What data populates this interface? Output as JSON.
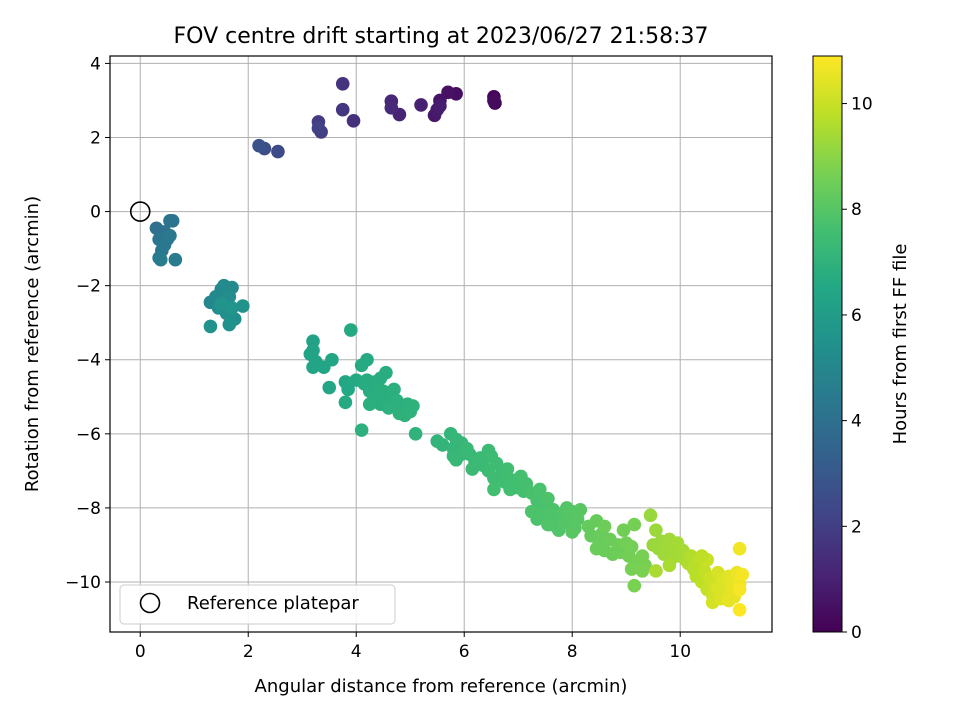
{
  "chart_data": {
    "type": "scatter",
    "title": "FOV centre drift starting at 2023/06/27 21:58:37",
    "xlabel": "Angular distance from reference (arcmin)",
    "ylabel": "Rotation from reference (arcmin)",
    "xlim": [
      -0.56,
      11.7
    ],
    "ylim": [
      -11.35,
      4.2
    ],
    "xticks": [
      0,
      2,
      4,
      6,
      8,
      10
    ],
    "yticks": [
      -10,
      -8,
      -6,
      -4,
      -2,
      0,
      2,
      4
    ],
    "x_tick_labels": [
      "0",
      "2",
      "4",
      "6",
      "8",
      "10"
    ],
    "y_tick_labels": [
      "−10",
      "−8",
      "−6",
      "−4",
      "−2",
      "0",
      "2",
      "4"
    ],
    "grid": true,
    "legend": {
      "placement": "lower-left",
      "label": "Reference platepar"
    },
    "reference_point": {
      "x": 0,
      "y": 0
    },
    "colorbar": {
      "label": "Hours from first FF file",
      "range": [
        0,
        10.9
      ],
      "ticks": [
        0,
        2,
        4,
        6,
        8,
        10
      ],
      "tick_labels": [
        "0",
        "2",
        "4",
        "6",
        "8",
        "10"
      ],
      "colormap": "viridis"
    },
    "points": [
      {
        "x": 6.55,
        "y": 3.1,
        "c": 0.1
      },
      {
        "x": 6.57,
        "y": 2.93,
        "c": 0.2
      },
      {
        "x": 6.55,
        "y": 3.0,
        "c": 0.3
      },
      {
        "x": 5.85,
        "y": 3.18,
        "c": 0.4
      },
      {
        "x": 5.7,
        "y": 3.22,
        "c": 0.5
      },
      {
        "x": 5.55,
        "y": 3.0,
        "c": 0.6
      },
      {
        "x": 5.45,
        "y": 2.6,
        "c": 0.7
      },
      {
        "x": 5.5,
        "y": 2.75,
        "c": 0.8
      },
      {
        "x": 5.55,
        "y": 2.85,
        "c": 0.9
      },
      {
        "x": 5.2,
        "y": 2.88,
        "c": 1.0
      },
      {
        "x": 4.8,
        "y": 2.62,
        "c": 1.1
      },
      {
        "x": 4.65,
        "y": 2.98,
        "c": 1.2
      },
      {
        "x": 4.65,
        "y": 2.8,
        "c": 1.3
      },
      {
        "x": 3.95,
        "y": 2.45,
        "c": 1.5
      },
      {
        "x": 3.75,
        "y": 3.45,
        "c": 1.6
      },
      {
        "x": 3.75,
        "y": 2.75,
        "c": 1.7
      },
      {
        "x": 3.3,
        "y": 2.42,
        "c": 1.9
      },
      {
        "x": 3.35,
        "y": 2.15,
        "c": 2.0
      },
      {
        "x": 3.3,
        "y": 2.25,
        "c": 2.1
      },
      {
        "x": 2.55,
        "y": 1.62,
        "c": 2.5
      },
      {
        "x": 2.3,
        "y": 1.7,
        "c": 2.6
      },
      {
        "x": 2.2,
        "y": 1.78,
        "c": 2.7
      },
      {
        "x": 0.3,
        "y": -0.45,
        "c": 4.0
      },
      {
        "x": 0.45,
        "y": -0.55,
        "c": 4.05
      },
      {
        "x": 0.55,
        "y": -0.25,
        "c": 4.1
      },
      {
        "x": 0.6,
        "y": -0.25,
        "c": 4.15
      },
      {
        "x": 0.5,
        "y": -0.75,
        "c": 4.2
      },
      {
        "x": 0.35,
        "y": -0.75,
        "c": 4.25
      },
      {
        "x": 0.4,
        "y": -1.05,
        "c": 4.3
      },
      {
        "x": 0.45,
        "y": -0.9,
        "c": 4.35
      },
      {
        "x": 0.55,
        "y": -0.65,
        "c": 4.4
      },
      {
        "x": 0.35,
        "y": -1.25,
        "c": 4.45
      },
      {
        "x": 0.38,
        "y": -1.3,
        "c": 4.5
      },
      {
        "x": 0.65,
        "y": -1.3,
        "c": 4.55
      },
      {
        "x": 1.3,
        "y": -2.45,
        "c": 5.0
      },
      {
        "x": 1.4,
        "y": -2.3,
        "c": 5.05
      },
      {
        "x": 1.5,
        "y": -2.1,
        "c": 5.1
      },
      {
        "x": 1.55,
        "y": -2.0,
        "c": 5.15
      },
      {
        "x": 1.7,
        "y": -2.05,
        "c": 5.2
      },
      {
        "x": 1.65,
        "y": -2.3,
        "c": 5.25
      },
      {
        "x": 1.45,
        "y": -2.6,
        "c": 5.3
      },
      {
        "x": 1.6,
        "y": -2.75,
        "c": 5.35
      },
      {
        "x": 1.75,
        "y": -2.9,
        "c": 5.4
      },
      {
        "x": 1.65,
        "y": -3.05,
        "c": 5.45
      },
      {
        "x": 1.3,
        "y": -3.1,
        "c": 5.5
      },
      {
        "x": 1.9,
        "y": -2.55,
        "c": 5.55
      },
      {
        "x": 1.5,
        "y": -2.5,
        "c": 5.6
      },
      {
        "x": 1.7,
        "y": -2.6,
        "c": 5.62
      },
      {
        "x": 3.2,
        "y": -3.5,
        "c": 6.2
      },
      {
        "x": 3.2,
        "y": -3.75,
        "c": 6.25
      },
      {
        "x": 3.25,
        "y": -4.05,
        "c": 6.3
      },
      {
        "x": 3.15,
        "y": -3.85,
        "c": 6.3
      },
      {
        "x": 3.2,
        "y": -4.2,
        "c": 6.35
      },
      {
        "x": 3.4,
        "y": -4.2,
        "c": 6.4
      },
      {
        "x": 3.55,
        "y": -4.0,
        "c": 6.4
      },
      {
        "x": 3.5,
        "y": -4.75,
        "c": 6.45
      },
      {
        "x": 3.8,
        "y": -4.6,
        "c": 6.5
      },
      {
        "x": 3.85,
        "y": -4.8,
        "c": 6.55
      },
      {
        "x": 3.8,
        "y": -5.15,
        "c": 6.6
      },
      {
        "x": 3.9,
        "y": -3.2,
        "c": 6.6
      },
      {
        "x": 4.0,
        "y": -4.55,
        "c": 6.6
      },
      {
        "x": 4.1,
        "y": -4.15,
        "c": 6.65
      },
      {
        "x": 4.2,
        "y": -4.0,
        "c": 6.65
      },
      {
        "x": 4.2,
        "y": -4.55,
        "c": 6.7
      },
      {
        "x": 4.15,
        "y": -4.65,
        "c": 6.7
      },
      {
        "x": 4.25,
        "y": -4.85,
        "c": 6.72
      },
      {
        "x": 4.35,
        "y": -4.6,
        "c": 6.74
      },
      {
        "x": 4.45,
        "y": -4.5,
        "c": 6.76
      },
      {
        "x": 4.55,
        "y": -4.35,
        "c": 6.78
      },
      {
        "x": 4.5,
        "y": -4.85,
        "c": 6.8
      },
      {
        "x": 4.35,
        "y": -5.0,
        "c": 6.8
      },
      {
        "x": 4.45,
        "y": -5.2,
        "c": 6.82
      },
      {
        "x": 4.6,
        "y": -5.05,
        "c": 6.84
      },
      {
        "x": 4.7,
        "y": -4.8,
        "c": 6.86
      },
      {
        "x": 4.75,
        "y": -5.1,
        "c": 6.88
      },
      {
        "x": 4.85,
        "y": -5.3,
        "c": 6.9
      },
      {
        "x": 4.95,
        "y": -5.2,
        "c": 6.92
      },
      {
        "x": 4.8,
        "y": -5.45,
        "c": 6.94
      },
      {
        "x": 5.05,
        "y": -5.25,
        "c": 6.96
      },
      {
        "x": 4.9,
        "y": -5.5,
        "c": 6.98
      },
      {
        "x": 5.0,
        "y": -5.4,
        "c": 7.0
      },
      {
        "x": 4.3,
        "y": -5.15,
        "c": 6.8
      },
      {
        "x": 4.1,
        "y": -5.9,
        "c": 6.9
      },
      {
        "x": 5.1,
        "y": -6.0,
        "c": 7.0
      },
      {
        "x": 4.25,
        "y": -5.2,
        "c": 6.85
      },
      {
        "x": 4.6,
        "y": -5.3,
        "c": 6.9
      },
      {
        "x": 4.4,
        "y": -4.75,
        "c": 6.8
      },
      {
        "x": 5.5,
        "y": -6.2,
        "c": 7.1
      },
      {
        "x": 5.6,
        "y": -6.3,
        "c": 7.12
      },
      {
        "x": 5.75,
        "y": -6.0,
        "c": 7.14
      },
      {
        "x": 5.8,
        "y": -6.4,
        "c": 7.16
      },
      {
        "x": 5.85,
        "y": -6.15,
        "c": 7.18
      },
      {
        "x": 5.95,
        "y": -6.25,
        "c": 7.2
      },
      {
        "x": 5.8,
        "y": -6.6,
        "c": 7.22
      },
      {
        "x": 5.95,
        "y": -6.55,
        "c": 7.24
      },
      {
        "x": 5.85,
        "y": -6.7,
        "c": 7.26
      },
      {
        "x": 6.05,
        "y": -6.4,
        "c": 7.28
      },
      {
        "x": 6.1,
        "y": -6.55,
        "c": 7.3
      },
      {
        "x": 6.2,
        "y": -6.75,
        "c": 7.32
      },
      {
        "x": 6.15,
        "y": -6.95,
        "c": 7.34
      },
      {
        "x": 6.3,
        "y": -6.65,
        "c": 7.36
      },
      {
        "x": 6.35,
        "y": -6.85,
        "c": 7.38
      },
      {
        "x": 6.45,
        "y": -6.45,
        "c": 7.4
      },
      {
        "x": 6.5,
        "y": -6.6,
        "c": 7.42
      },
      {
        "x": 6.45,
        "y": -7.0,
        "c": 7.44
      },
      {
        "x": 6.55,
        "y": -7.2,
        "c": 7.46
      },
      {
        "x": 6.6,
        "y": -6.8,
        "c": 7.48
      },
      {
        "x": 6.7,
        "y": -7.05,
        "c": 7.5
      },
      {
        "x": 6.8,
        "y": -6.95,
        "c": 7.52
      },
      {
        "x": 6.75,
        "y": -7.3,
        "c": 7.54
      },
      {
        "x": 6.55,
        "y": -7.5,
        "c": 7.56
      },
      {
        "x": 6.9,
        "y": -7.25,
        "c": 7.58
      },
      {
        "x": 6.95,
        "y": -7.45,
        "c": 7.6
      },
      {
        "x": 7.05,
        "y": -7.15,
        "c": 7.62
      },
      {
        "x": 7.1,
        "y": -7.55,
        "c": 7.64
      },
      {
        "x": 7.15,
        "y": -7.35,
        "c": 7.66
      },
      {
        "x": 6.85,
        "y": -7.5,
        "c": 7.58
      },
      {
        "x": 7.25,
        "y": -7.6,
        "c": 7.7
      },
      {
        "x": 7.35,
        "y": -7.8,
        "c": 7.72
      },
      {
        "x": 7.4,
        "y": -7.5,
        "c": 7.74
      },
      {
        "x": 7.45,
        "y": -8.0,
        "c": 7.76
      },
      {
        "x": 7.35,
        "y": -8.3,
        "c": 7.78
      },
      {
        "x": 7.5,
        "y": -8.15,
        "c": 7.8
      },
      {
        "x": 7.55,
        "y": -7.75,
        "c": 7.82
      },
      {
        "x": 7.65,
        "y": -8.05,
        "c": 7.84
      },
      {
        "x": 7.7,
        "y": -8.3,
        "c": 7.86
      },
      {
        "x": 7.6,
        "y": -8.45,
        "c": 7.88
      },
      {
        "x": 7.75,
        "y": -8.6,
        "c": 7.9
      },
      {
        "x": 7.8,
        "y": -8.2,
        "c": 7.92
      },
      {
        "x": 7.9,
        "y": -8.0,
        "c": 7.94
      },
      {
        "x": 7.85,
        "y": -8.4,
        "c": 7.96
      },
      {
        "x": 7.95,
        "y": -8.25,
        "c": 7.98
      },
      {
        "x": 8.0,
        "y": -8.1,
        "c": 8.0
      },
      {
        "x": 8.05,
        "y": -8.55,
        "c": 8.02
      },
      {
        "x": 8.1,
        "y": -8.3,
        "c": 8.04
      },
      {
        "x": 8.15,
        "y": -8.05,
        "c": 8.06
      },
      {
        "x": 8.0,
        "y": -8.65,
        "c": 8.08
      },
      {
        "x": 7.55,
        "y": -8.45,
        "c": 7.9
      },
      {
        "x": 7.25,
        "y": -8.1,
        "c": 7.8
      },
      {
        "x": 7.6,
        "y": -8.2,
        "c": 7.85
      },
      {
        "x": 8.3,
        "y": -8.5,
        "c": 8.3
      },
      {
        "x": 8.35,
        "y": -8.75,
        "c": 8.32
      },
      {
        "x": 8.45,
        "y": -8.35,
        "c": 8.34
      },
      {
        "x": 8.5,
        "y": -8.95,
        "c": 8.36
      },
      {
        "x": 8.55,
        "y": -8.7,
        "c": 8.38
      },
      {
        "x": 8.6,
        "y": -9.15,
        "c": 8.4
      },
      {
        "x": 8.7,
        "y": -8.85,
        "c": 8.42
      },
      {
        "x": 8.75,
        "y": -9.25,
        "c": 8.44
      },
      {
        "x": 8.6,
        "y": -8.5,
        "c": 8.46
      },
      {
        "x": 8.85,
        "y": -9.0,
        "c": 8.48
      },
      {
        "x": 8.9,
        "y": -9.2,
        "c": 8.5
      },
      {
        "x": 8.95,
        "y": -8.6,
        "c": 8.52
      },
      {
        "x": 9.0,
        "y": -8.95,
        "c": 8.54
      },
      {
        "x": 9.05,
        "y": -9.3,
        "c": 8.56
      },
      {
        "x": 9.1,
        "y": -9.05,
        "c": 8.58
      },
      {
        "x": 9.15,
        "y": -8.45,
        "c": 8.6
      },
      {
        "x": 9.2,
        "y": -9.45,
        "c": 8.62
      },
      {
        "x": 9.1,
        "y": -9.65,
        "c": 8.64
      },
      {
        "x": 9.3,
        "y": -9.3,
        "c": 8.66
      },
      {
        "x": 9.35,
        "y": -9.55,
        "c": 8.68
      },
      {
        "x": 9.15,
        "y": -10.1,
        "c": 8.7
      },
      {
        "x": 9.3,
        "y": -9.7,
        "c": 8.72
      },
      {
        "x": 8.45,
        "y": -9.1,
        "c": 8.4
      },
      {
        "x": 8.8,
        "y": -9.2,
        "c": 8.45
      },
      {
        "x": 9.45,
        "y": -8.2,
        "c": 9.2
      },
      {
        "x": 9.5,
        "y": -9.0,
        "c": 9.22
      },
      {
        "x": 9.55,
        "y": -8.6,
        "c": 9.24
      },
      {
        "x": 9.6,
        "y": -9.1,
        "c": 9.26
      },
      {
        "x": 9.65,
        "y": -8.9,
        "c": 9.28
      },
      {
        "x": 9.7,
        "y": -9.25,
        "c": 9.3
      },
      {
        "x": 9.75,
        "y": -9.0,
        "c": 9.32
      },
      {
        "x": 9.8,
        "y": -8.85,
        "c": 9.34
      },
      {
        "x": 9.85,
        "y": -9.35,
        "c": 9.36
      },
      {
        "x": 9.9,
        "y": -9.1,
        "c": 9.38
      },
      {
        "x": 9.95,
        "y": -8.95,
        "c": 9.4
      },
      {
        "x": 10.0,
        "y": -9.3,
        "c": 9.42
      },
      {
        "x": 10.05,
        "y": -9.15,
        "c": 9.44
      },
      {
        "x": 10.1,
        "y": -9.4,
        "c": 9.46
      },
      {
        "x": 9.8,
        "y": -9.55,
        "c": 9.48
      },
      {
        "x": 9.55,
        "y": -9.7,
        "c": 9.5
      },
      {
        "x": 10.15,
        "y": -9.5,
        "c": 9.6
      },
      {
        "x": 10.2,
        "y": -9.3,
        "c": 9.65
      },
      {
        "x": 10.25,
        "y": -9.65,
        "c": 9.7
      },
      {
        "x": 10.3,
        "y": -9.85,
        "c": 9.75
      },
      {
        "x": 10.35,
        "y": -9.45,
        "c": 9.8
      },
      {
        "x": 10.4,
        "y": -10.0,
        "c": 9.85
      },
      {
        "x": 10.45,
        "y": -9.7,
        "c": 9.9
      },
      {
        "x": 10.5,
        "y": -10.2,
        "c": 9.95
      },
      {
        "x": 10.5,
        "y": -9.4,
        "c": 10.0
      },
      {
        "x": 10.55,
        "y": -9.9,
        "c": 10.05
      },
      {
        "x": 10.6,
        "y": -10.35,
        "c": 10.1
      },
      {
        "x": 10.65,
        "y": -10.1,
        "c": 10.15
      },
      {
        "x": 10.6,
        "y": -10.55,
        "c": 10.2
      },
      {
        "x": 10.7,
        "y": -9.75,
        "c": 10.25
      },
      {
        "x": 10.75,
        "y": -10.45,
        "c": 10.3
      },
      {
        "x": 10.8,
        "y": -10.0,
        "c": 10.35
      },
      {
        "x": 10.85,
        "y": -10.3,
        "c": 10.4
      },
      {
        "x": 10.9,
        "y": -9.85,
        "c": 10.45
      },
      {
        "x": 10.95,
        "y": -10.1,
        "c": 10.5
      },
      {
        "x": 11.0,
        "y": -10.4,
        "c": 10.55
      },
      {
        "x": 11.05,
        "y": -9.75,
        "c": 10.6
      },
      {
        "x": 11.1,
        "y": -10.05,
        "c": 10.65
      },
      {
        "x": 11.1,
        "y": -9.1,
        "c": 10.7
      },
      {
        "x": 11.15,
        "y": -9.8,
        "c": 10.75
      },
      {
        "x": 11.1,
        "y": -10.2,
        "c": 10.8
      },
      {
        "x": 11.1,
        "y": -10.75,
        "c": 10.9
      },
      {
        "x": 10.4,
        "y": -9.3,
        "c": 9.85
      },
      {
        "x": 10.7,
        "y": -10.2,
        "c": 10.3
      },
      {
        "x": 10.9,
        "y": -10.5,
        "c": 10.5
      }
    ]
  }
}
